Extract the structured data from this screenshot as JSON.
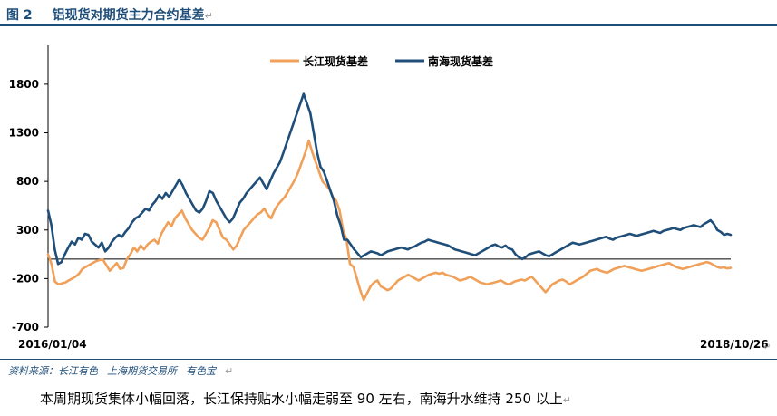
{
  "figure": {
    "title_prefix": "图 2",
    "title": "铝现货对期货主力合约基差",
    "return_mark": "↵"
  },
  "chart_data": {
    "type": "line",
    "title": "铝现货对期货主力合约基差",
    "xlabel": "",
    "ylabel": "",
    "x_start_label": "2016/01/04",
    "x_end_label": "2018/10/26",
    "yticks": [
      1800,
      1300,
      800,
      300,
      -200,
      -700
    ],
    "ylim": [
      -700,
      2200
    ],
    "zero_line": 0,
    "grid": false,
    "legend_position": "top-center",
    "series_colors": [
      "#f0a058",
      "#1f4e79"
    ],
    "series": [
      {
        "name": "长江现货基差",
        "color": "#f0a058",
        "values": [
          50,
          -50,
          -230,
          -260,
          -250,
          -240,
          -220,
          -200,
          -180,
          -150,
          -100,
          -80,
          -60,
          -40,
          -20,
          -10,
          -5,
          -60,
          -120,
          -80,
          -40,
          -100,
          -90,
          0,
          50,
          120,
          80,
          140,
          100,
          150,
          180,
          200,
          160,
          260,
          320,
          380,
          340,
          420,
          460,
          500,
          420,
          360,
          300,
          260,
          220,
          200,
          260,
          320,
          400,
          380,
          300,
          220,
          200,
          150,
          100,
          140,
          220,
          300,
          340,
          380,
          420,
          460,
          480,
          520,
          460,
          420,
          500,
          560,
          600,
          640,
          700,
          760,
          820,
          900,
          1000,
          1100,
          1220,
          1100,
          1000,
          900,
          800,
          760,
          720,
          640,
          600,
          500,
          300,
          200,
          -50,
          -80,
          -200,
          -320,
          -420,
          -350,
          -280,
          -240,
          -220,
          -280,
          -300,
          -320,
          -300,
          -260,
          -220,
          -200,
          -180,
          -160,
          -180,
          -200,
          -220,
          -200,
          -180,
          -160,
          -150,
          -140,
          -150,
          -140,
          -160,
          -170,
          -180,
          -200,
          -220,
          -210,
          -200,
          -180,
          -200,
          -220,
          -240,
          -250,
          -260,
          -250,
          -240,
          -230,
          -220,
          -240,
          -260,
          -250,
          -230,
          -220,
          -210,
          -220,
          -200,
          -180,
          -220,
          -260,
          -300,
          -340,
          -300,
          -260,
          -240,
          -220,
          -210,
          -230,
          -260,
          -240,
          -220,
          -200,
          -180,
          -150,
          -120,
          -110,
          -100,
          -120,
          -130,
          -140,
          -120,
          -100,
          -90,
          -80,
          -70,
          -80,
          -90,
          -100,
          -110,
          -120,
          -110,
          -100,
          -90,
          -80,
          -70,
          -60,
          -50,
          -40,
          -60,
          -80,
          -90,
          -100,
          -90,
          -80,
          -70,
          -60,
          -50,
          -40,
          -30,
          -40,
          -60,
          -80,
          -90,
          -85,
          -95,
          -90
        ]
      },
      {
        "name": "南海现货基差",
        "color": "#1f4e79",
        "values": [
          500,
          350,
          100,
          -50,
          -30,
          50,
          120,
          180,
          150,
          220,
          200,
          260,
          250,
          180,
          150,
          120,
          170,
          80,
          120,
          180,
          220,
          250,
          230,
          280,
          320,
          380,
          420,
          440,
          480,
          520,
          500,
          560,
          600,
          660,
          620,
          680,
          640,
          700,
          760,
          820,
          760,
          680,
          620,
          560,
          500,
          480,
          520,
          600,
          700,
          680,
          600,
          540,
          480,
          420,
          380,
          420,
          500,
          580,
          620,
          680,
          720,
          760,
          800,
          840,
          780,
          720,
          800,
          880,
          940,
          1000,
          1100,
          1200,
          1300,
          1400,
          1500,
          1600,
          1700,
          1600,
          1500,
          1300,
          1100,
          950,
          900,
          800,
          700,
          600,
          450,
          350,
          200,
          200,
          150,
          100,
          60,
          20,
          40,
          60,
          80,
          70,
          60,
          40,
          60,
          80,
          90,
          100,
          110,
          120,
          110,
          100,
          120,
          130,
          150,
          170,
          180,
          200,
          190,
          180,
          170,
          160,
          150,
          140,
          120,
          100,
          90,
          80,
          70,
          60,
          50,
          40,
          60,
          80,
          100,
          120,
          140,
          150,
          130,
          120,
          140,
          110,
          100,
          50,
          20,
          0,
          20,
          50,
          60,
          70,
          80,
          60,
          40,
          30,
          50,
          70,
          90,
          110,
          130,
          150,
          170,
          160,
          150,
          160,
          170,
          180,
          190,
          200,
          210,
          220,
          230,
          210,
          200,
          220,
          230,
          240,
          250,
          260,
          250,
          240,
          250,
          260,
          270,
          280,
          290,
          280,
          270,
          290,
          300,
          310,
          320,
          310,
          300,
          320,
          330,
          340,
          350,
          340,
          330,
          360,
          380,
          400,
          360,
          300,
          280,
          250,
          260,
          250
        ]
      }
    ]
  },
  "source": {
    "label": "资料来源：",
    "items": [
      "长江有色",
      "上海期货交易所",
      "有色宝"
    ]
  },
  "summary": {
    "text": "本周期现货集体小幅回落，长江保持贴水小幅走弱至 90 左右，南海升水维持 250 以上"
  }
}
